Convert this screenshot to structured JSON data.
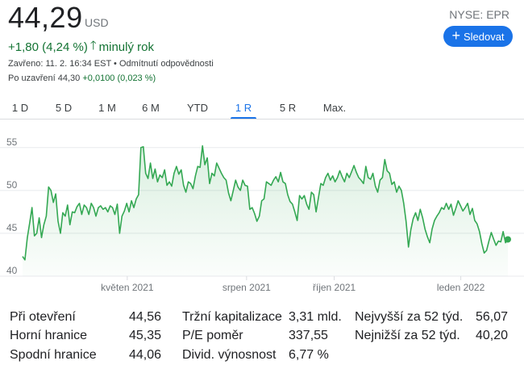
{
  "quote": {
    "price": "44,29",
    "currency": "USD",
    "ticker": "NYSE: EPR",
    "follow_label": "Sledovat",
    "change": "+1,80 (4,24 %)",
    "change_period": "minulý rok",
    "closed_text": "Zavřeno: 11. 2. 16:34 EST • Odmítnutí odpovědnosti",
    "after_hours_label": "Po uzavření 44,30",
    "after_hours_change": "+0,0100 (0,023 %)"
  },
  "tabs": [
    {
      "label": "1 D"
    },
    {
      "label": "5 D"
    },
    {
      "label": "1 M"
    },
    {
      "label": "6 M"
    },
    {
      "label": "YTD"
    },
    {
      "label": "1 R",
      "active": true
    },
    {
      "label": "5 R"
    },
    {
      "label": "Max."
    }
  ],
  "colors": {
    "line": "#34a853",
    "accent": "#1a73e8",
    "positive": "#137333"
  },
  "chart_data": {
    "type": "line",
    "y_ticks": [
      "55",
      "50",
      "45",
      "40"
    ],
    "ylim": [
      40,
      56.2
    ],
    "x_labels": [
      {
        "label": "květen 2021",
        "x": 0.215
      },
      {
        "label": "srpen 2021",
        "x": 0.46
      },
      {
        "label": "říjen 2021",
        "x": 0.64
      },
      {
        "label": "leden 2022",
        "x": 0.9
      }
    ],
    "values": [
      42.3,
      41.9,
      44.5,
      46.2,
      48.0,
      44.7,
      45.0,
      46.8,
      44.5,
      46.0,
      47.0,
      50.4,
      50.0,
      48.6,
      49.6,
      46.4,
      45.0,
      47.4,
      47.0,
      48.3,
      46.0,
      47.5,
      47.4,
      48.1,
      48.5,
      47.2,
      48.3,
      48.0,
      47.2,
      48.5,
      48.0,
      47.0,
      48.0,
      48.2,
      47.8,
      48.0,
      47.5,
      48.2,
      48.0,
      47.2,
      48.4,
      45.0,
      47.0,
      47.6,
      48.5,
      47.5,
      48.8,
      48.0,
      49.0,
      49.5,
      55.0,
      55.1,
      52.0,
      51.4,
      53.2,
      51.4,
      52.5,
      51.0,
      51.8,
      51.5,
      52.4,
      50.6,
      51.0,
      50.5,
      52.0,
      52.8,
      51.9,
      52.4,
      50.6,
      49.8,
      51.0,
      50.8,
      50.2,
      51.7,
      52.8,
      52.7,
      55.2,
      53.0,
      53.8,
      50.8,
      52.0,
      51.7,
      53.2,
      52.6,
      52.0,
      51.5,
      51.2,
      49.7,
      48.8,
      50.0,
      51.2,
      50.4,
      50.0,
      51.2,
      50.6,
      50.5,
      47.8,
      48.0,
      47.3,
      46.4,
      47.0,
      48.8,
      49.0,
      51.0,
      50.8,
      50.6,
      51.2,
      51.6,
      51.0,
      52.1,
      51.0,
      50.8,
      49.5,
      48.7,
      48.4,
      47.5,
      46.5,
      49.4,
      49.0,
      49.4,
      48.4,
      47.8,
      49.8,
      49.5,
      47.5,
      49.2,
      50.8,
      50.6,
      51.5,
      52.0,
      51.2,
      51.7,
      51.0,
      51.5,
      52.3,
      51.6,
      51.0,
      52.0,
      51.5,
      52.2,
      52.9,
      52.1,
      51.5,
      51.2,
      50.8,
      52.8,
      51.5,
      51.3,
      52.0,
      50.5,
      49.8,
      51.2,
      51.5,
      53.6,
      52.3,
      52.0,
      50.7,
      51.0,
      49.8,
      50.5,
      50.0,
      48.5,
      46.4,
      43.4,
      45.4,
      46.7,
      47.4,
      46.5,
      47.8,
      46.8,
      45.5,
      44.6,
      43.9,
      45.5,
      46.5,
      47.0,
      47.4,
      48.0,
      47.8,
      48.5,
      47.8,
      48.4,
      47.1,
      47.9,
      48.8,
      48.2,
      47.6,
      48.0,
      48.5,
      47.2,
      47.9,
      46.5,
      46.1,
      45.2,
      43.8,
      42.7,
      43.0,
      44.1,
      45.1,
      44.3,
      43.6,
      44.1,
      44.0,
      45.2,
      43.9,
      44.29
    ]
  },
  "stats": [
    [
      {
        "label": "Při otevření",
        "value": "44,56"
      },
      {
        "label": "Horní hranice",
        "value": "45,35"
      },
      {
        "label": "Spodní hranice",
        "value": "44,06"
      }
    ],
    [
      {
        "label": "Tržní kapitalizace",
        "value": "3,31 mld."
      },
      {
        "label": "P/E poměr",
        "value": "337,55"
      },
      {
        "label": "Divid. výnosnost",
        "value": "6,77 %"
      }
    ],
    [
      {
        "label": "Nejvyšší za 52 týd.",
        "value": "56,07"
      },
      {
        "label": "Nejnižší za 52 týd.",
        "value": "40,20"
      }
    ]
  ]
}
